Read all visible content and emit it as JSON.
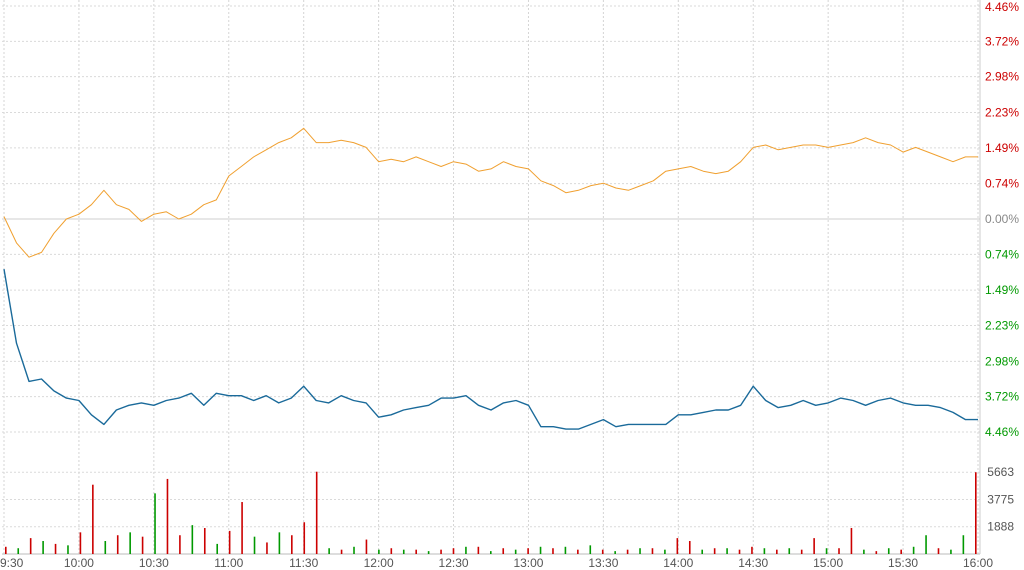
{
  "chart_data": {
    "type": "line",
    "x_ticks": [
      "9:30",
      "10:00",
      "10:30",
      "11:00",
      "11:30",
      "12:00",
      "12:30",
      "13:00",
      "13:30",
      "14:00",
      "14:30",
      "15:00",
      "15:30",
      "16:00"
    ],
    "y_ticks_pct": [
      "4.46%",
      "3.72%",
      "2.98%",
      "2.23%",
      "1.49%",
      "0.74%",
      "0.00%",
      "0.74%",
      "1.49%",
      "2.23%",
      "2.98%",
      "3.72%",
      "4.46%"
    ],
    "y_tick_values_pct": [
      4.46,
      3.72,
      2.98,
      2.23,
      1.49,
      0.74,
      0.0,
      -0.74,
      -1.49,
      -2.23,
      -2.98,
      -3.72,
      -4.46
    ],
    "y_tick_colors": [
      "#cc0000",
      "#cc0000",
      "#cc0000",
      "#cc0000",
      "#cc0000",
      "#cc0000",
      "#888888",
      "#009900",
      "#009900",
      "#009900",
      "#009900",
      "#009900",
      "#009900"
    ],
    "ylim_pct": [
      -4.46,
      4.46
    ],
    "volume_ticks": [
      "5663",
      "3775",
      "1888"
    ],
    "volume_tick_values": [
      5663,
      3775,
      1888
    ],
    "volume_max": 7550,
    "grid": true,
    "series": [
      {
        "color": "#f0a030",
        "x": [
          "9:30",
          "9:35",
          "9:40",
          "9:45",
          "9:50",
          "9:55",
          "10:00",
          "10:05",
          "10:10",
          "10:15",
          "10:20",
          "10:25",
          "10:30",
          "10:35",
          "10:40",
          "10:45",
          "10:50",
          "10:55",
          "11:00",
          "11:05",
          "11:10",
          "11:15",
          "11:20",
          "11:25",
          "11:30",
          "11:35",
          "11:40",
          "11:45",
          "11:50",
          "11:55",
          "12:00",
          "12:05",
          "12:10",
          "12:15",
          "12:20",
          "12:25",
          "12:30",
          "12:35",
          "12:40",
          "12:45",
          "12:50",
          "12:55",
          "13:00",
          "13:05",
          "13:10",
          "13:15",
          "13:20",
          "13:25",
          "13:30",
          "13:35",
          "13:40",
          "13:45",
          "13:50",
          "13:55",
          "14:00",
          "14:05",
          "14:10",
          "14:15",
          "14:20",
          "14:25",
          "14:30",
          "14:35",
          "14:40",
          "14:45",
          "14:50",
          "14:55",
          "15:00",
          "15:05",
          "15:10",
          "15:15",
          "15:20",
          "15:25",
          "15:30",
          "15:35",
          "15:40",
          "15:45",
          "15:50",
          "15:55",
          "16:00"
        ],
        "values": [
          0.05,
          -0.5,
          -0.8,
          -0.7,
          -0.3,
          0.0,
          0.1,
          0.3,
          0.6,
          0.3,
          0.2,
          -0.05,
          0.1,
          0.15,
          0.0,
          0.1,
          0.3,
          0.4,
          0.9,
          1.1,
          1.3,
          1.45,
          1.6,
          1.7,
          1.9,
          1.6,
          1.6,
          1.65,
          1.6,
          1.5,
          1.2,
          1.25,
          1.2,
          1.3,
          1.2,
          1.1,
          1.2,
          1.15,
          1.0,
          1.05,
          1.2,
          1.1,
          1.05,
          0.8,
          0.7,
          0.55,
          0.6,
          0.7,
          0.75,
          0.65,
          0.6,
          0.7,
          0.8,
          1.0,
          1.05,
          1.1,
          1.0,
          0.95,
          1.0,
          1.2,
          1.5,
          1.55,
          1.45,
          1.5,
          1.55,
          1.55,
          1.5,
          1.55,
          1.6,
          1.7,
          1.6,
          1.55,
          1.4,
          1.5,
          1.4,
          1.3,
          1.2,
          1.3,
          1.3
        ]
      },
      {
        "color": "#1a6a9a",
        "x": [
          "9:30",
          "9:35",
          "9:40",
          "9:45",
          "9:50",
          "9:55",
          "10:00",
          "10:05",
          "10:10",
          "10:15",
          "10:20",
          "10:25",
          "10:30",
          "10:35",
          "10:40",
          "10:45",
          "10:50",
          "10:55",
          "11:00",
          "11:05",
          "11:10",
          "11:15",
          "11:20",
          "11:25",
          "11:30",
          "11:35",
          "11:40",
          "11:45",
          "11:50",
          "11:55",
          "12:00",
          "12:05",
          "12:10",
          "12:15",
          "12:20",
          "12:25",
          "12:30",
          "12:35",
          "12:40",
          "12:45",
          "12:50",
          "12:55",
          "13:00",
          "13:05",
          "13:10",
          "13:15",
          "13:20",
          "13:25",
          "13:30",
          "13:35",
          "13:40",
          "13:45",
          "13:50",
          "13:55",
          "14:00",
          "14:05",
          "14:10",
          "14:15",
          "14:20",
          "14:25",
          "14:30",
          "14:35",
          "14:40",
          "14:45",
          "14:50",
          "14:55",
          "15:00",
          "15:05",
          "15:10",
          "15:15",
          "15:20",
          "15:25",
          "15:30",
          "15:35",
          "15:40",
          "15:45",
          "15:50",
          "15:55",
          "16:00"
        ],
        "values": [
          -1.05,
          -2.6,
          -3.4,
          -3.35,
          -3.6,
          -3.75,
          -3.8,
          -4.1,
          -4.3,
          -4.0,
          -3.9,
          -3.85,
          -3.9,
          -3.8,
          -3.75,
          -3.65,
          -3.9,
          -3.65,
          -3.7,
          -3.7,
          -3.8,
          -3.7,
          -3.85,
          -3.75,
          -3.5,
          -3.8,
          -3.85,
          -3.7,
          -3.8,
          -3.85,
          -4.15,
          -4.1,
          -4.0,
          -3.95,
          -3.9,
          -3.75,
          -3.75,
          -3.7,
          -3.9,
          -4.0,
          -3.85,
          -3.8,
          -3.9,
          -4.35,
          -4.35,
          -4.4,
          -4.4,
          -4.3,
          -4.2,
          -4.35,
          -4.3,
          -4.3,
          -4.3,
          -4.3,
          -4.1,
          -4.1,
          -4.05,
          -4.0,
          -4.0,
          -3.9,
          -3.5,
          -3.8,
          -3.95,
          -3.9,
          -3.8,
          -3.9,
          -3.85,
          -3.75,
          -3.8,
          -3.9,
          -3.8,
          -3.75,
          -3.85,
          -3.9,
          -3.9,
          -3.95,
          -4.05,
          -4.2,
          -4.2
        ]
      }
    ],
    "volume": {
      "values": [
        500,
        400,
        1100,
        900,
        700,
        600,
        1500,
        4800,
        900,
        1300,
        1500,
        1200,
        4200,
        5200,
        1300,
        2000,
        1800,
        700,
        1600,
        3600,
        1200,
        800,
        1500,
        1300,
        2200,
        5700,
        400,
        300,
        500,
        1000,
        300,
        400,
        300,
        300,
        200,
        300,
        400,
        500,
        500,
        200,
        400,
        300,
        400,
        500,
        400,
        500,
        300,
        600,
        300,
        200,
        300,
        400,
        400,
        300,
        1100,
        900,
        300,
        400,
        400,
        300,
        500,
        400,
        300,
        400,
        300,
        1100,
        400,
        400,
        1800,
        300,
        200,
        400,
        300,
        500,
        1300,
        400,
        300,
        1300,
        5663
      ],
      "colors": [
        "#cc0000",
        "#009900",
        "#cc0000",
        "#009900",
        "#cc0000",
        "#009900",
        "#cc0000",
        "#cc0000",
        "#009900",
        "#cc0000",
        "#009900",
        "#cc0000",
        "#009900",
        "#cc0000",
        "#cc0000",
        "#009900",
        "#cc0000",
        "#009900",
        "#cc0000",
        "#cc0000",
        "#009900",
        "#cc0000",
        "#009900",
        "#cc0000",
        "#cc0000",
        "#cc0000",
        "#009900",
        "#cc0000",
        "#009900",
        "#cc0000",
        "#009900",
        "#cc0000",
        "#009900",
        "#cc0000",
        "#009900",
        "#cc0000",
        "#cc0000",
        "#009900",
        "#cc0000",
        "#009900",
        "#cc0000",
        "#009900",
        "#cc0000",
        "#009900",
        "#cc0000",
        "#009900",
        "#cc0000",
        "#009900",
        "#cc0000",
        "#009900",
        "#cc0000",
        "#009900",
        "#cc0000",
        "#009900",
        "#cc0000",
        "#cc0000",
        "#009900",
        "#cc0000",
        "#009900",
        "#cc0000",
        "#cc0000",
        "#009900",
        "#cc0000",
        "#009900",
        "#cc0000",
        "#cc0000",
        "#009900",
        "#cc0000",
        "#cc0000",
        "#009900",
        "#cc0000",
        "#009900",
        "#cc0000",
        "#009900",
        "#009900",
        "#cc0000",
        "#009900",
        "#009900",
        "#cc0000"
      ]
    }
  }
}
